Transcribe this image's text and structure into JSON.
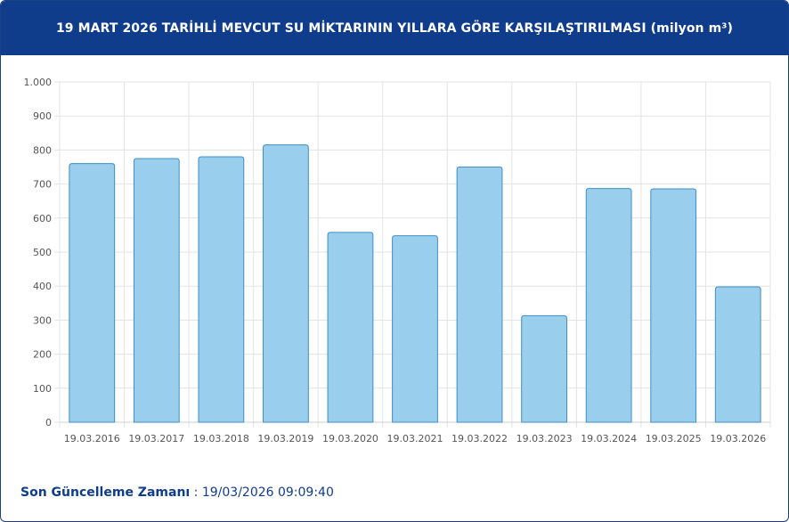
{
  "header": {
    "title": "19 MART 2026 TARİHLİ MEVCUT SU MİKTARININ YILLARA GÖRE KARŞILAŞTIRILMASI (milyon m³)"
  },
  "footer": {
    "label": "Son Güncelleme Zamanı",
    "separator": " : ",
    "value": "19/03/2026 09:09:40"
  },
  "colors": {
    "header_bg": "#0f3d8c",
    "bar_fill": "#99cfec",
    "bar_stroke": "#3f8ec4",
    "grid": "#e3e3e3"
  },
  "chart_data": {
    "type": "bar",
    "categories": [
      "19.03.2016",
      "19.03.2017",
      "19.03.2018",
      "19.03.2019",
      "19.03.2020",
      "19.03.2021",
      "19.03.2022",
      "19.03.2023",
      "19.03.2024",
      "19.03.2025",
      "19.03.2026"
    ],
    "values": [
      760,
      775,
      780,
      815,
      558,
      548,
      750,
      313,
      687,
      686,
      398
    ],
    "ylim": [
      0,
      1000
    ],
    "yticks": [
      0,
      100,
      200,
      300,
      400,
      500,
      600,
      700,
      800,
      900,
      1000
    ],
    "ytick_labels": [
      "0",
      "100",
      "200",
      "300",
      "400",
      "500",
      "600",
      "700",
      "800",
      "900",
      "1.000"
    ],
    "grid": true,
    "legend": false,
    "title": "",
    "xlabel": "",
    "ylabel": ""
  }
}
